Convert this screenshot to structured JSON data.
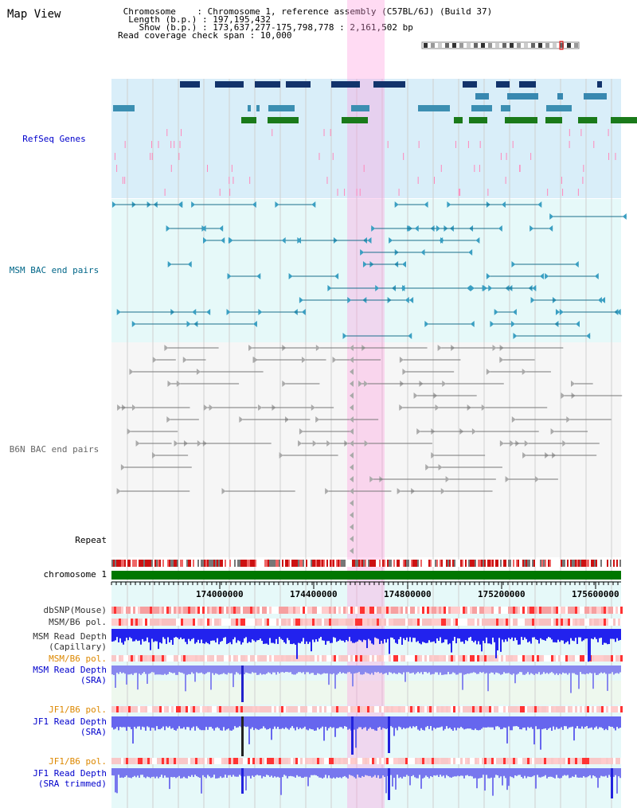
{
  "header": {
    "title": "Map View",
    "chromosome_line": " Chromosome    : Chromosome 1, reference assembly (C57BL/6J) (Build 37)",
    "length_line": "  Length (b.p.) : 197,195,432",
    "show_line": "    Show (b.p.) : 173,637,277-175,798,778 : 2,161,502 bp",
    "coverage_line": "Read coverage check span : 10,000"
  },
  "tracks": {
    "refseq": "RefSeq Genes",
    "msm_bac": "MSM BAC end pairs",
    "b6n_bac": "B6N BAC end pairs",
    "repeat": "Repeat",
    "chromosome": "chromosome 1",
    "dbsnp": "dbSNP(Mouse)",
    "msm_b6_pol_1": "MSM/B6 pol.",
    "msm_read_depth_cap_1": "MSM Read Depth",
    "msm_read_depth_cap_2": "(Capillary)",
    "msm_b6_pol_2": "MSM/B6 pol.",
    "msm_read_depth_sra_1": "MSM Read Depth",
    "msm_read_depth_sra_2": "(SRA)",
    "jf1_b6_pol_1": "JF1/B6 pol.",
    "jf1_read_depth_sra_1": "JF1 Read Depth",
    "jf1_read_depth_sra_2": "(SRA)",
    "jf1_b6_pol_2": "JF1/B6 pol.",
    "jf1_read_depth_trim_1": "JF1 Read Depth",
    "jf1_read_depth_trim_2": "(SRA trimmed)"
  },
  "axis": {
    "ticks": [
      "174000000",
      "174400000",
      "174800000",
      "175200000",
      "175600000"
    ]
  },
  "colors": {
    "refseq_label": "#0000cc",
    "msm_label": "#006688",
    "b6n_label": "#666666",
    "orange_label": "#dd8800",
    "blue_label": "#0000cc",
    "highlight": "#ff99dd",
    "chromosome_bar": "#007700",
    "refseq_bg": "#d9eef9",
    "msm_bg": "#e6f9f9"
  }
}
